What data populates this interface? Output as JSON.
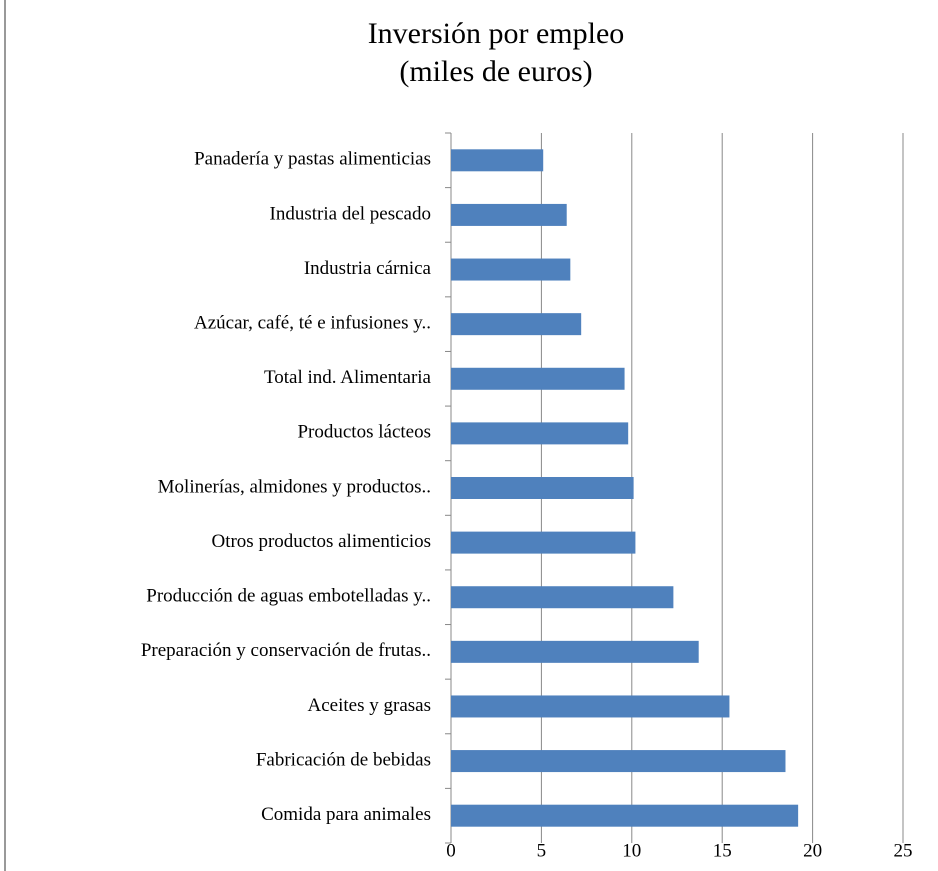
{
  "chart_data": {
    "type": "bar",
    "orientation": "horizontal",
    "title": [
      "Inversión por empleo",
      "(miles de euros)"
    ],
    "categories": [
      "Panadería y pastas alimenticias",
      "Industria del pescado",
      "Industria cárnica",
      "Azúcar, café, té e infusiones y..",
      "Total ind. Alimentaria",
      "Productos lácteos",
      "Molinerías, almidones y productos..",
      "Otros productos alimenticios",
      "Producción de aguas embotelladas y..",
      "Preparación y conservación de frutas..",
      "Aceites y grasas",
      "Fabricación de bebidas",
      "Comida para animales"
    ],
    "values": [
      5.1,
      6.4,
      6.6,
      7.2,
      9.6,
      9.8,
      10.1,
      10.2,
      12.3,
      13.7,
      15.4,
      18.5,
      19.2
    ],
    "color": "#4f81bd",
    "xlim": [
      0,
      25
    ],
    "xticks": [
      0,
      5,
      10,
      15,
      20,
      25
    ],
    "grid": true
  }
}
